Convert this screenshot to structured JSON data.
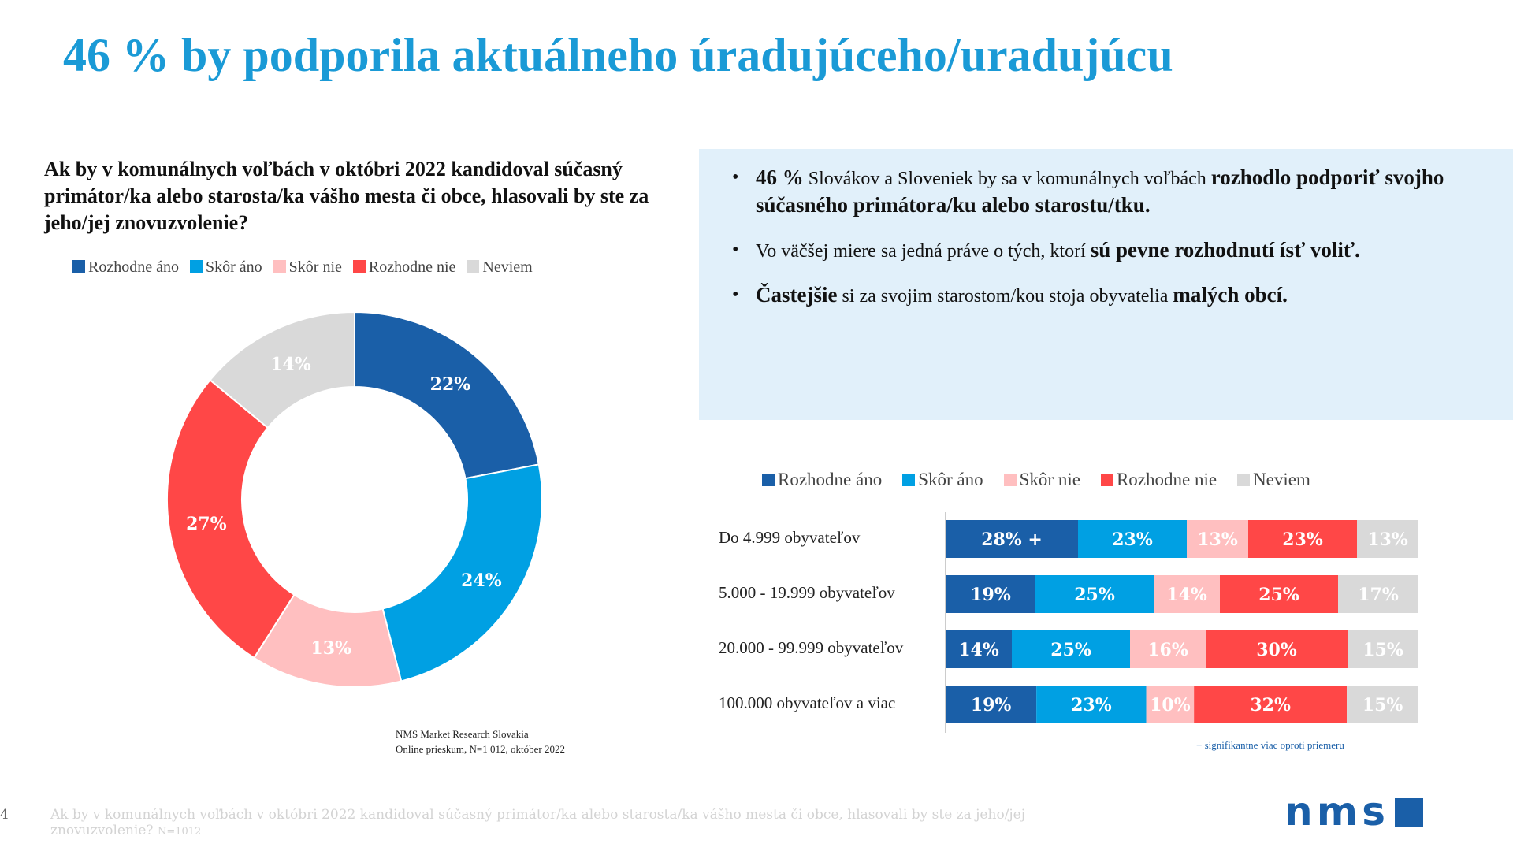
{
  "title": "46 % by podporila aktuálneho úradujúceho/uradujúcu",
  "question": "Ak by v komunálnych voľbách v októbri 2022 kandidoval súčasný primátor/ka alebo starosta/ka vášho mesta či obce, hlasovali by ste za jeho/jej znovuzvolenie?",
  "colors": {
    "rozhodne_ano": "#1a5fa8",
    "skor_ano": "#00a0e3",
    "skor_nie": "#ffbfc0",
    "rozhodne_nie": "#ff4747",
    "neviem": "#d9d9d9",
    "title": "#1a9ad6"
  },
  "legend": [
    "Rozhodne áno",
    "Skôr áno",
    "Skôr nie",
    "Rozhodne nie",
    "Neviem"
  ],
  "bullets": [
    {
      "b1": "46 %",
      "t1": " Slovákov a Sloveniek by sa v komunálnych voľbách ",
      "b2": "rozhodlo podporiť svojho súčasného primátora/ku alebo starostu/tku."
    },
    {
      "t1": "Vo väčšej miere sa jedná práve o tých, ktorí ",
      "b2": "sú pevne rozhodnutí ísť voliť."
    },
    {
      "b1": "Častejšie",
      "t1": " si za svojim starostom/kou stoja obyvatelia ",
      "b2": "malých obcí."
    }
  ],
  "source": [
    "NMS Market Research Slovakia",
    "Online prieskum, N=1 012, október 2022"
  ],
  "footnote": "+ signifikantne viac oproti priemeru",
  "footer": "Ak by v komunálnych voľbách v októbri 2022 kandidoval súčasný primátor/ka alebo starosta/ka vášho mesta či obce, hlasovali by ste za jeho/jej znovuzvolenie?",
  "footer_n": "N=1012",
  "page_number": "4",
  "logo_text": "nms",
  "chart_data": [
    {
      "type": "pie",
      "variant": "donut",
      "categories": [
        "Rozhodne áno",
        "Skôr áno",
        "Skôr nie",
        "Rozhodne nie",
        "Neviem"
      ],
      "values": [
        22,
        24,
        13,
        27,
        14
      ],
      "labels": [
        "22%",
        "24%",
        "13%",
        "27%",
        "14%"
      ],
      "legend_position": "top"
    },
    {
      "type": "bar",
      "orientation": "horizontal",
      "stacked": true,
      "categories": [
        "Do 4.999 obyvateľov",
        "5.000 - 19.999 obyvateľov",
        "20.000 - 99.999 obyvateľov",
        "100.000 obyvateľov a viac"
      ],
      "series": [
        {
          "name": "Rozhodne áno",
          "values": [
            28,
            19,
            14,
            19
          ],
          "labels": [
            "28% +",
            "19%",
            "14%",
            "19%"
          ]
        },
        {
          "name": "Skôr áno",
          "values": [
            23,
            25,
            25,
            23
          ],
          "labels": [
            "23%",
            "25%",
            "25%",
            "23%"
          ]
        },
        {
          "name": "Skôr nie",
          "values": [
            13,
            14,
            16,
            10
          ],
          "labels": [
            "13%",
            "14%",
            "16%",
            "10%"
          ]
        },
        {
          "name": "Rozhodne nie",
          "values": [
            23,
            25,
            30,
            32
          ],
          "labels": [
            "23%",
            "25%",
            "30%",
            "32%"
          ]
        },
        {
          "name": "Neviem",
          "values": [
            13,
            17,
            15,
            15
          ],
          "labels": [
            "13%",
            "17%",
            "15%",
            "15%"
          ]
        }
      ],
      "legend_position": "top"
    }
  ]
}
